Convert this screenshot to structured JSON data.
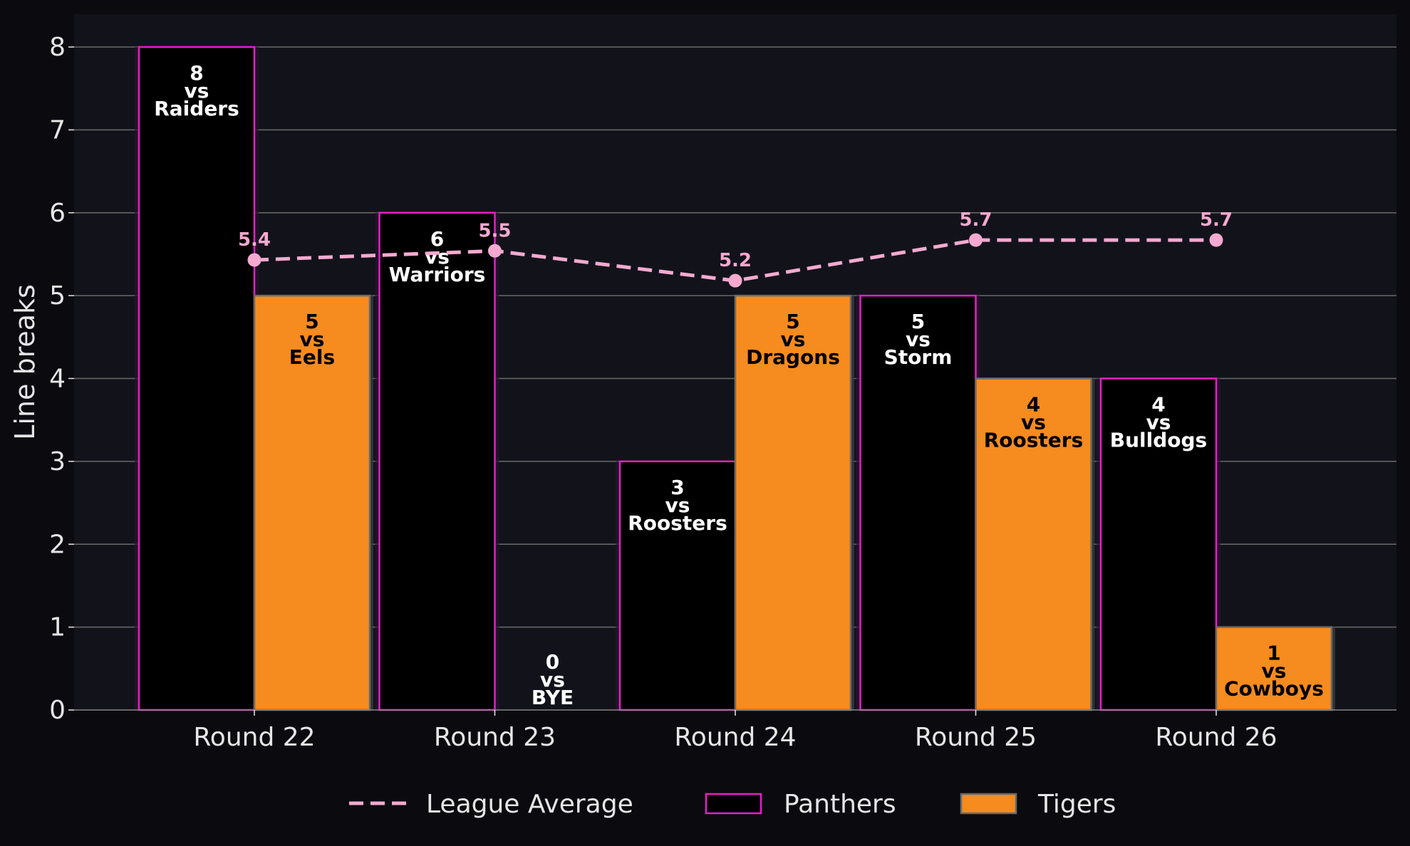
{
  "chart_data": {
    "type": "bar",
    "title": "",
    "xlabel": "",
    "ylabel": "Line breaks",
    "ylim": [
      0,
      8.4
    ],
    "yticks": [
      0,
      1,
      2,
      3,
      4,
      5,
      6,
      7,
      8
    ],
    "grid": true,
    "legend_position": "bottom-center",
    "categories": [
      "Round 22",
      "Round 23",
      "Round 24",
      "Round 25",
      "Round 26"
    ],
    "series": [
      {
        "name": "Panthers",
        "kind": "bar",
        "values": [
          8,
          6,
          3,
          5,
          4
        ],
        "labels": [
          [
            "8",
            "vs",
            "Raiders"
          ],
          [
            "6",
            "vs",
            "Warriors"
          ],
          [
            "3",
            "vs",
            "Roosters"
          ],
          [
            "5",
            "vs",
            "Storm"
          ],
          [
            "4",
            "vs",
            "Bulldogs"
          ]
        ]
      },
      {
        "name": "Tigers",
        "kind": "bar",
        "values": [
          5,
          0,
          5,
          4,
          1
        ],
        "labels": [
          [
            "5",
            "vs",
            "Eels"
          ],
          [
            "0",
            "vs",
            "BYE"
          ],
          [
            "5",
            "vs",
            "Dragons"
          ],
          [
            "4",
            "vs",
            "Roosters"
          ],
          [
            "1",
            "vs",
            "Cowboys"
          ]
        ]
      },
      {
        "name": "League Average",
        "kind": "line",
        "values": [
          5.43,
          5.54,
          5.18,
          5.67,
          5.67
        ],
        "labels": [
          "5.4",
          "5.5",
          "5.2",
          "5.7",
          "5.7"
        ]
      }
    ],
    "colors": {
      "panthers_fill": "#000000",
      "panthers_edge": "#e61ec8",
      "tigers_fill": "#f68b1f",
      "tigers_edge": "#6b6b6b",
      "average_line": "#f5a9d0",
      "plot_bg": "#12131a",
      "page_bg": "#0b0b0f",
      "grid": "#6a6a6a",
      "text": "#e6e6e6"
    }
  }
}
